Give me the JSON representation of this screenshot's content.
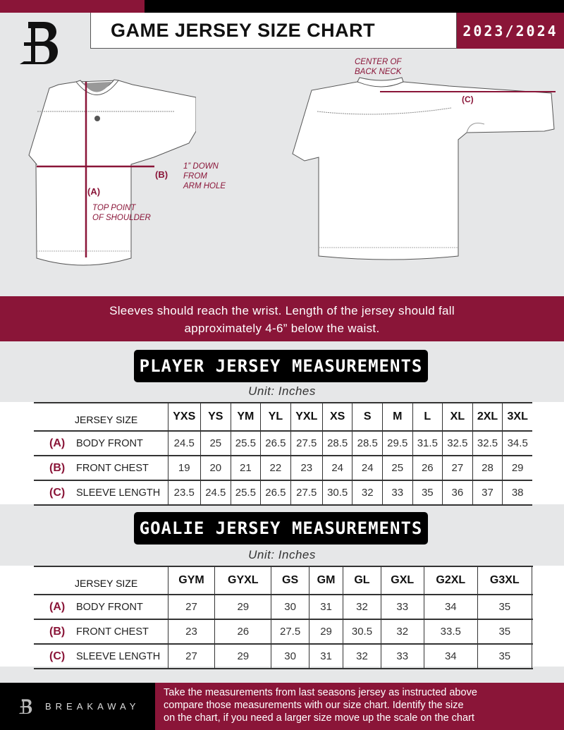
{
  "header": {
    "title": "GAME JERSEY SIZE CHART",
    "season": "2023/2024",
    "brand_color": "#8a1538"
  },
  "diagram": {
    "front": {
      "label_a": "(A)",
      "note_a": [
        "TOP POINT",
        "OF SHOULDER"
      ],
      "label_b": "(B)",
      "note_b": [
        "1” DOWN",
        "FROM",
        "ARM HOLE"
      ]
    },
    "back": {
      "note_c": [
        "CENTER OF",
        "BACK NECK"
      ],
      "label_c": "(C)"
    }
  },
  "banner": {
    "line1": "Sleeves should reach the wrist. Length of the jersey should fall",
    "line2": "approximately 4-6” below the waist."
  },
  "player": {
    "title": "PLAYER JERSEY MEASUREMENTS",
    "unit": "Unit: Inches",
    "header_label": "JERSEY SIZE",
    "sizes": [
      "YXS",
      "YS",
      "YM",
      "YL",
      "YXL",
      "XS",
      "S",
      "M",
      "L",
      "XL",
      "2XL",
      "3XL"
    ],
    "rows": [
      {
        "code": "(A)",
        "label": "BODY FRONT",
        "values": [
          "24.5",
          "25",
          "25.5",
          "26.5",
          "27.5",
          "28.5",
          "28.5",
          "29.5",
          "31.5",
          "32.5",
          "32.5",
          "34.5"
        ]
      },
      {
        "code": "(B)",
        "label": "FRONT CHEST",
        "values": [
          "19",
          "20",
          "21",
          "22",
          "23",
          "24",
          "24",
          "25",
          "26",
          "27",
          "28",
          "29"
        ]
      },
      {
        "code": "(C)",
        "label": "SLEEVE LENGTH",
        "values": [
          "23.5",
          "24.5",
          "25.5",
          "26.5",
          "27.5",
          "30.5",
          "32",
          "33",
          "35",
          "36",
          "37",
          "38"
        ]
      }
    ]
  },
  "goalie": {
    "title": "GOALIE JERSEY MEASUREMENTS",
    "unit": "Unit: Inches",
    "header_label": "JERSEY SIZE",
    "sizes": [
      "GYM",
      "GYXL",
      "GS",
      "GM",
      "GL",
      "GXL",
      "G2XL",
      "G3XL",
      ""
    ],
    "rows": [
      {
        "code": "(A)",
        "label": "BODY FRONT",
        "values": [
          "27",
          "29",
          "30",
          "31",
          "32",
          "33",
          "34",
          "35",
          ""
        ]
      },
      {
        "code": "(B)",
        "label": "FRONT CHEST",
        "values": [
          "23",
          "26",
          "27.5",
          "29",
          "30.5",
          "32",
          "33.5",
          "35",
          ""
        ]
      },
      {
        "code": "(C)",
        "label": "SLEEVE LENGTH",
        "values": [
          "27",
          "29",
          "30",
          "31",
          "32",
          "33",
          "34",
          "35",
          ""
        ]
      }
    ]
  },
  "footer": {
    "brand": "BREAKAWAY",
    "text": [
      "Take the measurements from last seasons jersey as instructed above",
      "compare those measurements  with our size chart. Identify the size",
      "on the chart, if you need a larger size move up the scale on the chart"
    ]
  }
}
